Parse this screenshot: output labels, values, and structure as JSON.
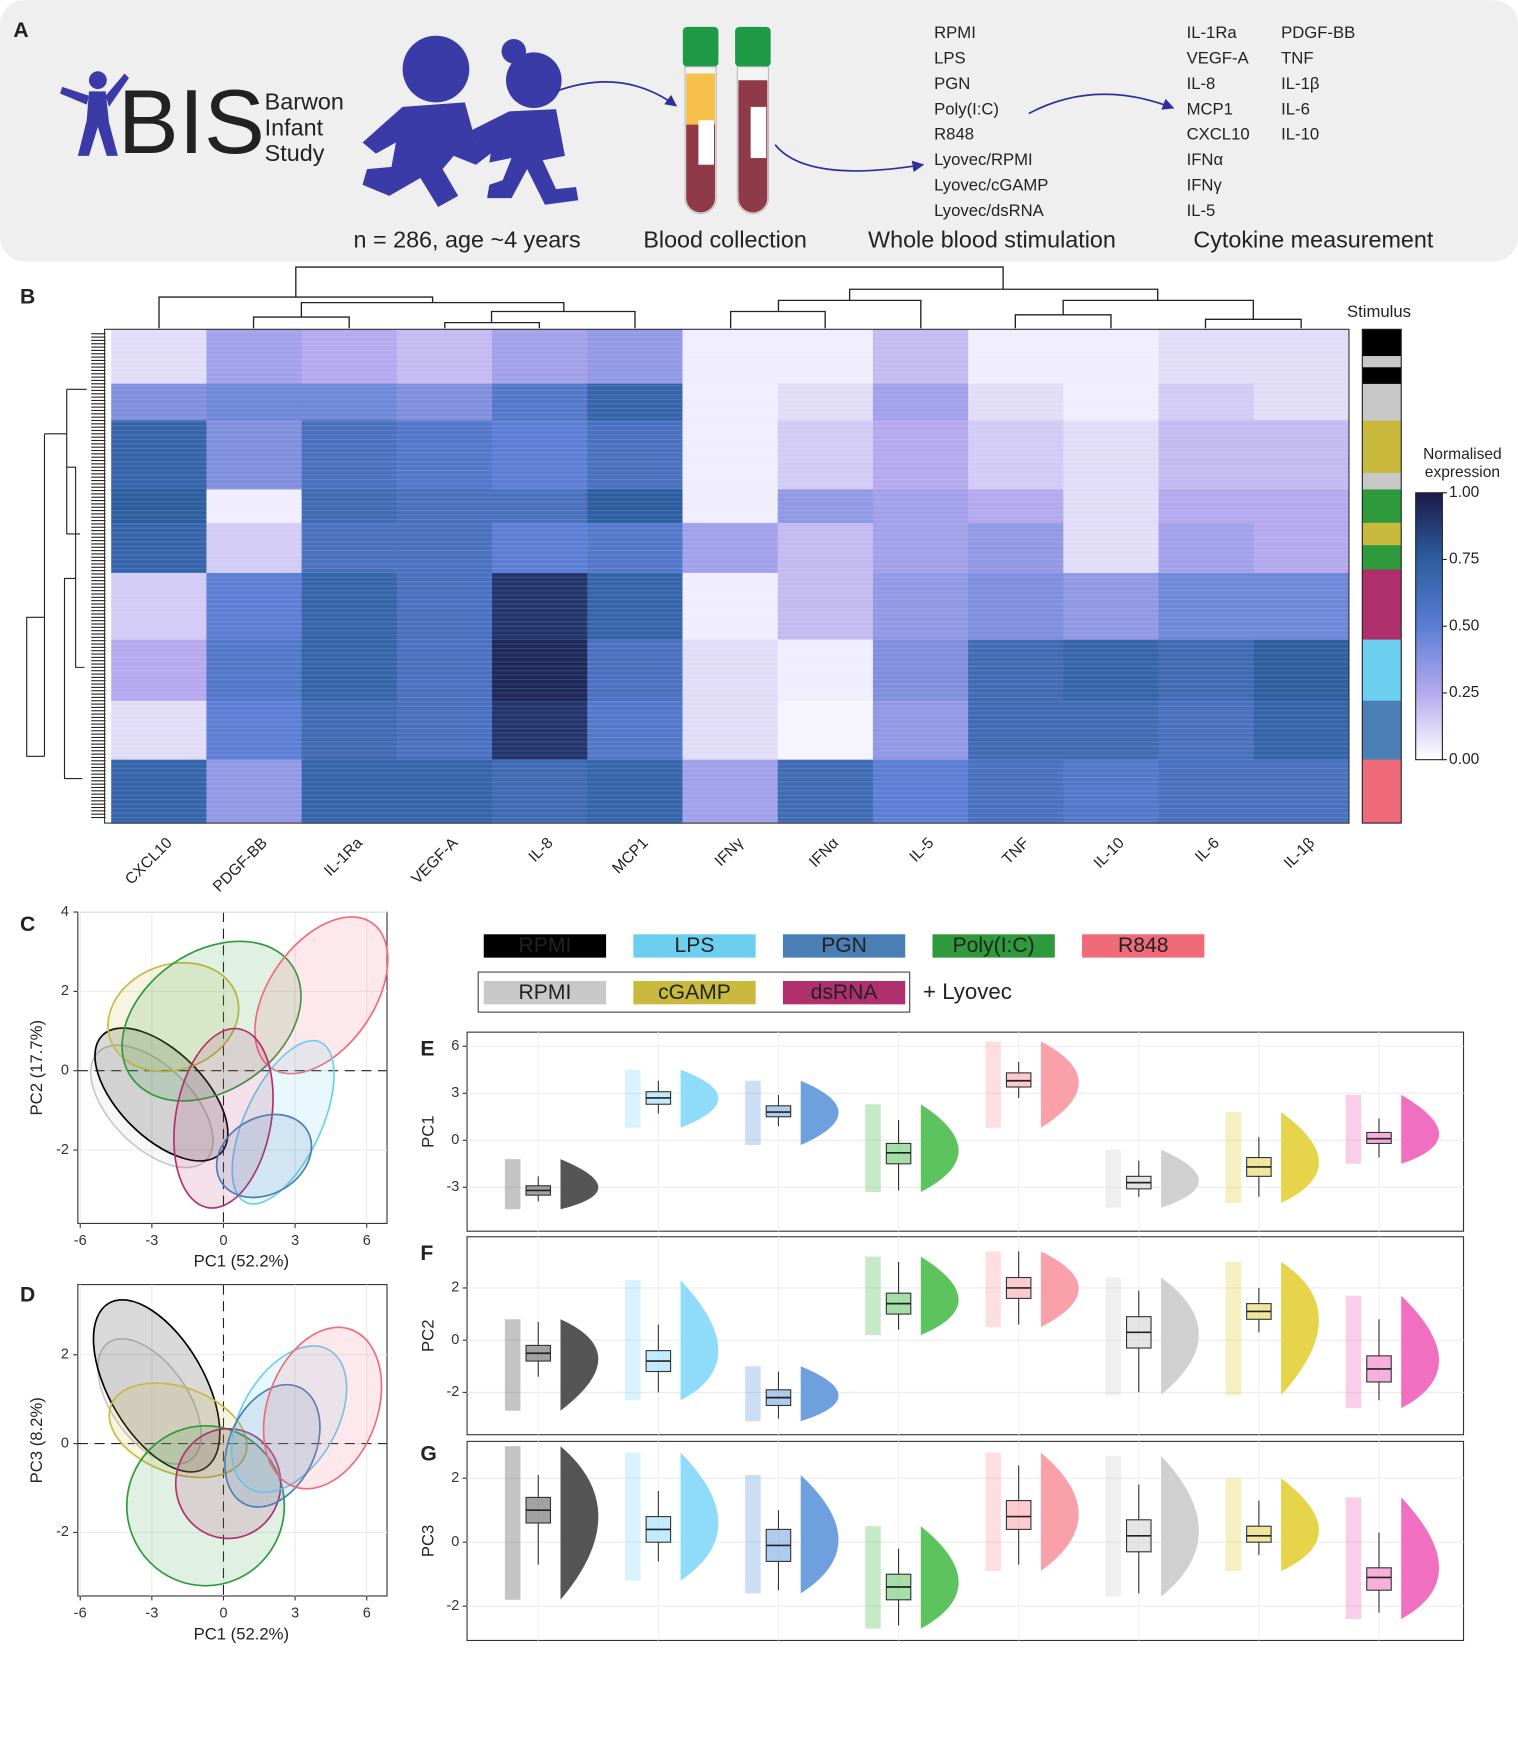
{
  "panel_a": {
    "panel": "A",
    "logo": {
      "letters": "BIS",
      "words": [
        "Barwon",
        "Infant",
        "Study"
      ]
    },
    "captions": [
      "n = 286, age ~4 years",
      "Blood collection",
      "Whole blood stimulation",
      "Cytokine measurement"
    ],
    "stimuli": [
      "RPMI",
      "LPS",
      "PGN",
      "Poly(I:C)",
      "R848",
      "Lyovec/RPMI",
      "Lyovec/cGAMP",
      "Lyovec/dsRNA"
    ],
    "cytokines": [
      "IL-1Ra",
      "VEGF-A",
      "IL-8",
      "MCP1",
      "CXCL10",
      "IFNα",
      "IFNγ",
      "IL-5",
      "PDGF-BB",
      "TNF",
      "IL-1β",
      "IL-6",
      "IL-10"
    ]
  },
  "legend": {
    "items": [
      {
        "label": "RPMI",
        "color": "#000000"
      },
      {
        "label": "LPS",
        "color": "#6dcff0"
      },
      {
        "label": "PGN",
        "color": "#4a7fb5"
      },
      {
        "label": "Poly(I:C)",
        "color": "#2e9a3c"
      },
      {
        "label": "R848",
        "color": "#f06b7a"
      },
      {
        "label": "RPMI",
        "color": "#c8c8c8"
      },
      {
        "label": "cGAMP",
        "color": "#c9b93d"
      },
      {
        "label": "dsRNA",
        "color": "#b0306e"
      }
    ],
    "group_note": "+ Lyovec"
  },
  "chart_data": [
    {
      "type": "heatmap",
      "panel": "B",
      "columns": [
        "CXCL10",
        "PDGF-BB",
        "IL-1Ra",
        "VEGF-A",
        "IL-8",
        "MCP1",
        "IFNγ",
        "IFNα",
        "IL-5",
        "TNF",
        "IL-10",
        "IL-6",
        "IL-1β"
      ],
      "row_bands": [
        {
          "rows": 252,
          "values": [
            0.1,
            0.3,
            0.25,
            0.2,
            0.3,
            0.35,
            0.05,
            0.05,
            0.2,
            0.05,
            0.05,
            0.1,
            0.1
          ]
        },
        {
          "rows": 170,
          "values": [
            0.4,
            0.45,
            0.45,
            0.4,
            0.55,
            0.7,
            0.05,
            0.1,
            0.3,
            0.1,
            0.05,
            0.15,
            0.1
          ]
        },
        {
          "rows": 320,
          "values": [
            0.7,
            0.4,
            0.6,
            0.55,
            0.5,
            0.6,
            0.05,
            0.15,
            0.25,
            0.15,
            0.1,
            0.2,
            0.2
          ]
        },
        {
          "rows": 155,
          "values": [
            0.75,
            0.05,
            0.65,
            0.6,
            0.6,
            0.75,
            0.05,
            0.35,
            0.3,
            0.25,
            0.1,
            0.25,
            0.25
          ]
        },
        {
          "rows": 232,
          "values": [
            0.7,
            0.15,
            0.6,
            0.6,
            0.5,
            0.55,
            0.3,
            0.2,
            0.3,
            0.35,
            0.1,
            0.3,
            0.25
          ]
        },
        {
          "rows": 309,
          "values": [
            0.15,
            0.5,
            0.7,
            0.6,
            0.9,
            0.7,
            0.05,
            0.2,
            0.35,
            0.4,
            0.35,
            0.45,
            0.45
          ]
        },
        {
          "rows": 283,
          "values": [
            0.25,
            0.55,
            0.7,
            0.6,
            0.95,
            0.6,
            0.1,
            0.05,
            0.4,
            0.65,
            0.7,
            0.65,
            0.75
          ]
        },
        {
          "rows": 273,
          "values": [
            0.1,
            0.5,
            0.65,
            0.6,
            0.9,
            0.55,
            0.1,
            0.03,
            0.35,
            0.65,
            0.65,
            0.6,
            0.7
          ]
        },
        {
          "rows": 294,
          "values": [
            0.7,
            0.35,
            0.7,
            0.7,
            0.65,
            0.7,
            0.3,
            0.65,
            0.5,
            0.6,
            0.55,
            0.6,
            0.6
          ]
        }
      ],
      "colorbar": {
        "title": [
          "Normalised",
          "expression"
        ],
        "clim": [
          0,
          1
        ],
        "ticks": [
          {
            "value": 0,
            "label": "0.00"
          },
          {
            "value": 0.25,
            "label": "0.25"
          },
          {
            "value": 0.5,
            "label": "0.50"
          },
          {
            "value": 0.75,
            "label": "0.75"
          },
          {
            "value": 1,
            "label": "1.00"
          }
        ],
        "colors": [
          "#ffffff",
          "#b4a9ee",
          "#5c7ed4",
          "#2d5e9f",
          "#1c1a4a"
        ]
      },
      "stimulus_bar": {
        "title": "Stimulus",
        "bands": [
          {
            "color": "#000000",
            "rows": 124
          },
          {
            "color": "#c8c8c8",
            "rows": 52
          },
          {
            "color": "#000000",
            "rows": 77
          },
          {
            "color": "#c8c8c8",
            "rows": 170
          },
          {
            "color": "#c9b93d",
            "rows": 242
          },
          {
            "color": "#c8c8c8",
            "rows": 77
          },
          {
            "color": "#2e9a3c",
            "rows": 155
          },
          {
            "color": "#c9b93d",
            "rows": 103
          },
          {
            "color": "#2e9a3c",
            "rows": 113
          },
          {
            "color": "#b0306e",
            "rows": 325
          },
          {
            "color": "#6dcff0",
            "rows": 283
          },
          {
            "color": "#4a7fb5",
            "rows": 273
          },
          {
            "color": "#f06b7a",
            "rows": 294
          }
        ]
      }
    },
    {
      "type": "scatter",
      "panel": "C",
      "xlabel": "PC1  (52.2%)",
      "ylabel": "PC2  (17.7%)",
      "xlim": [
        -6.1,
        6.85
      ],
      "ylim": [
        -3.85,
        4
      ],
      "xticks": [
        -6,
        -3,
        0,
        3,
        6
      ],
      "yticks": [
        -2,
        0,
        2,
        4
      ],
      "ellipses": [
        {
          "color": "#c8c8c8",
          "cx": -3.0,
          "cy": -0.9,
          "rx": 3.2,
          "ry": 1.7,
          "angle": 45
        },
        {
          "color": "#000000",
          "cx": -2.6,
          "cy": -0.6,
          "rx": 3.5,
          "ry": 1.8,
          "angle": 45
        },
        {
          "color": "#c9b93d",
          "cx": -2.1,
          "cy": 1.35,
          "rx": 2.8,
          "ry": 2.2,
          "angle": -20
        },
        {
          "color": "#2e9a3c",
          "cx": -0.5,
          "cy": 1.25,
          "rx": 4.1,
          "ry": 2.9,
          "angle": -35
        },
        {
          "color": "#f06b7a",
          "cx": 4.1,
          "cy": 1.9,
          "rx": 3.7,
          "ry": 2.2,
          "angle": -55
        },
        {
          "color": "#6dcff0",
          "cx": 2.5,
          "cy": -1.3,
          "rx": 3.7,
          "ry": 1.6,
          "angle": -65
        },
        {
          "color": "#b0306e",
          "cx": 0.0,
          "cy": -1.2,
          "rx": 3.8,
          "ry": 2.0,
          "angle": -80
        },
        {
          "color": "#4a7fb5",
          "cx": 1.7,
          "cy": -2.15,
          "rx": 2.1,
          "ry": 1.6,
          "angle": -30
        }
      ]
    },
    {
      "type": "scatter",
      "panel": "D",
      "xlabel": "PC1  (52.2%)",
      "ylabel": "PC3  (8.2%)",
      "xlim": [
        -6.1,
        6.85
      ],
      "ylim": [
        -3.43,
        3.58
      ],
      "xticks": [
        -6,
        -3,
        0,
        3,
        6
      ],
      "yticks": [
        -2,
        0,
        2
      ],
      "ellipses": [
        {
          "color": "#c8c8c8",
          "cx": -3.1,
          "cy": 0.95,
          "rx": 3.0,
          "ry": 1.6,
          "angle": 55
        },
        {
          "color": "#000000",
          "cx": -2.8,
          "cy": 1.3,
          "rx": 4.0,
          "ry": 2.0,
          "angle": 60
        },
        {
          "color": "#c9b93d",
          "cx": -1.9,
          "cy": 0.3,
          "rx": 3.0,
          "ry": 1.8,
          "angle": 20
        },
        {
          "color": "#2e9a3c",
          "cx": -0.75,
          "cy": -1.4,
          "rx": 3.3,
          "ry": 3.35,
          "angle": 0
        },
        {
          "color": "#b0306e",
          "cx": 0.2,
          "cy": -0.9,
          "rx": 2.2,
          "ry": 2.3,
          "angle": 0
        },
        {
          "color": "#6dcff0",
          "cx": 2.75,
          "cy": 0.55,
          "rx": 3.35,
          "ry": 2.0,
          "angle": -60
        },
        {
          "color": "#4a7fb5",
          "cx": 2.05,
          "cy": -0.05,
          "rx": 2.7,
          "ry": 1.8,
          "angle": -65
        },
        {
          "color": "#f06b7a",
          "cx": 4.15,
          "cy": 0.8,
          "rx": 3.5,
          "ry": 2.3,
          "angle": -70
        }
      ]
    },
    {
      "type": "raincloud",
      "panel": "E",
      "ylabel": "PC1",
      "ylim": [
        -5.8,
        6.9
      ],
      "yticks": [
        -3,
        0,
        3,
        6
      ],
      "categories": [
        null,
        null,
        null,
        null,
        null,
        null,
        null,
        null
      ],
      "colors": [
        "#555555",
        "#8fdcfa",
        "#6ea0e0",
        "#5cc35e",
        "#f9a0a8",
        "#d0d0d0",
        "#e6d44a",
        "#f06fc0"
      ],
      "median": [
        -3.2,
        2.7,
        1.8,
        -0.8,
        3.8,
        -2.7,
        -1.7,
        0.1
      ],
      "q1": [
        -3.5,
        2.3,
        1.5,
        -1.5,
        3.4,
        -3.1,
        -2.3,
        -0.2
      ],
      "q3": [
        -2.9,
        3.1,
        2.2,
        -0.2,
        4.3,
        -2.3,
        -1.1,
        0.5
      ],
      "whisker_low": [
        -3.9,
        1.7,
        0.9,
        -3.2,
        2.7,
        -3.6,
        -3.6,
        -1.1
      ],
      "whisker_high": [
        -2.3,
        3.8,
        2.9,
        1.3,
        5.0,
        -1.3,
        0.2,
        1.4
      ],
      "min": [
        -4.4,
        0.8,
        -0.3,
        -3.3,
        0.8,
        -4.3,
        -4.0,
        -1.5
      ],
      "max": [
        -1.2,
        4.5,
        3.8,
        2.3,
        6.3,
        -0.6,
        1.8,
        2.9
      ]
    },
    {
      "type": "raincloud",
      "panel": "F",
      "ylabel": "PC2",
      "ylim": [
        -3.62,
        3.96
      ],
      "yticks": [
        -2,
        0,
        2
      ],
      "categories": [
        null,
        null,
        null,
        null,
        null,
        null,
        null,
        null
      ],
      "colors": [
        "#555555",
        "#8fdcfa",
        "#6ea0e0",
        "#5cc35e",
        "#f9a0a8",
        "#d0d0d0",
        "#e6d44a",
        "#f06fc0"
      ],
      "median": [
        -0.5,
        -0.8,
        -2.2,
        1.4,
        2.0,
        0.3,
        1.1,
        -1.1
      ],
      "q1": [
        -0.8,
        -1.2,
        -2.5,
        1.0,
        1.6,
        -0.3,
        0.8,
        -1.6
      ],
      "q3": [
        -0.2,
        -0.4,
        -1.9,
        1.8,
        2.4,
        0.9,
        1.4,
        -0.6
      ],
      "whisker_low": [
        -1.4,
        -2.0,
        -3.0,
        0.4,
        0.6,
        -2.0,
        0.3,
        -2.3
      ],
      "whisker_high": [
        0.7,
        0.6,
        -1.2,
        3.0,
        3.4,
        1.9,
        2.0,
        0.8
      ],
      "min": [
        -2.7,
        -2.3,
        -3.1,
        0.2,
        0.5,
        -2.1,
        -2.1,
        -2.6
      ],
      "max": [
        0.8,
        2.3,
        -1.0,
        3.2,
        3.4,
        2.4,
        3.0,
        1.7
      ]
    },
    {
      "type": "raincloud",
      "panel": "G",
      "ylabel": "PC3",
      "ylim": [
        -3.07,
        3.15
      ],
      "yticks": [
        -2,
        0,
        2
      ],
      "categories": [
        null,
        null,
        null,
        null,
        null,
        null,
        null,
        null
      ],
      "colors": [
        "#555555",
        "#8fdcfa",
        "#6ea0e0",
        "#5cc35e",
        "#f9a0a8",
        "#d0d0d0",
        "#e6d44a",
        "#f06fc0"
      ],
      "median": [
        1.0,
        0.4,
        -0.1,
        -1.4,
        0.8,
        0.2,
        0.2,
        -1.1
      ],
      "q1": [
        0.6,
        0.0,
        -0.6,
        -1.8,
        0.4,
        -0.3,
        0.0,
        -1.5
      ],
      "q3": [
        1.4,
        0.8,
        0.4,
        -1.0,
        1.3,
        0.7,
        0.5,
        -0.8
      ],
      "whisker_low": [
        -0.7,
        -0.6,
        -1.5,
        -2.6,
        -0.7,
        -1.6,
        -0.4,
        -2.2
      ],
      "whisker_high": [
        2.1,
        1.6,
        1.0,
        -0.2,
        2.4,
        1.8,
        1.3,
        0.3
      ],
      "min": [
        -1.8,
        -1.2,
        -1.6,
        -2.7,
        -0.9,
        -1.7,
        -0.9,
        -2.4
      ],
      "max": [
        3.0,
        2.8,
        2.1,
        0.5,
        2.8,
        2.7,
        2.0,
        1.4
      ]
    }
  ]
}
